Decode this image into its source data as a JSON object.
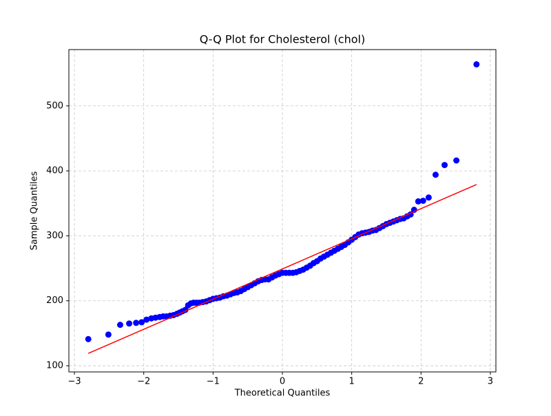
{
  "chart_data": {
    "type": "scatter",
    "title": "Q-Q Plot for Cholesterol (chol)",
    "x_label": "Theoretical Quantiles",
    "y_label": "Sample Quantiles",
    "xlim": [
      -3.08,
      3.08
    ],
    "ylim": [
      90.5,
      586.7
    ],
    "xticks": [
      {
        "value": -3,
        "label": "−3"
      },
      {
        "value": -2,
        "label": "−2"
      },
      {
        "value": -1,
        "label": "−1"
      },
      0,
      1,
      2,
      3
    ],
    "yticks": [
      100,
      200,
      300,
      400,
      500
    ],
    "grid": true,
    "series": [
      {
        "type": "scatter",
        "color": "#0000ff",
        "x": [
          -2.8,
          -2.51,
          -2.34,
          -2.21,
          -2.11,
          -2.03,
          -1.96,
          -1.89,
          -1.83,
          -1.77,
          -1.72,
          -1.67,
          -1.62,
          -1.57,
          -1.52,
          -1.48,
          -1.44,
          -1.4,
          -1.36,
          -1.32,
          -1.28,
          -1.24,
          -1.2,
          -1.15,
          -1.1,
          -1.05,
          -1.0,
          -0.95,
          -0.9,
          -0.85,
          -0.8,
          -0.75,
          -0.7,
          -0.65,
          -0.6,
          -0.55,
          -0.5,
          -0.45,
          -0.4,
          -0.35,
          -0.3,
          -0.25,
          -0.2,
          -0.15,
          -0.1,
          -0.05,
          0.0,
          0.05,
          0.1,
          0.15,
          0.2,
          0.25,
          0.3,
          0.35,
          0.4,
          0.45,
          0.5,
          0.55,
          0.6,
          0.65,
          0.7,
          0.75,
          0.8,
          0.85,
          0.9,
          0.95,
          1.0,
          1.05,
          1.1,
          1.15,
          1.2,
          1.25,
          1.3,
          1.35,
          1.4,
          1.45,
          1.5,
          1.55,
          1.6,
          1.65,
          1.7,
          1.75,
          1.8,
          1.85,
          1.9,
          1.96,
          2.03,
          2.11,
          2.21,
          2.34,
          2.51,
          2.8
        ],
        "values": [
          141,
          148,
          163,
          165,
          166,
          167,
          171,
          173,
          174,
          175,
          176,
          176,
          177,
          178,
          180,
          182,
          184,
          186,
          193,
          196,
          197,
          197,
          197,
          198,
          199,
          201,
          203,
          204,
          205,
          207,
          208,
          210,
          212,
          213,
          215,
          218,
          221,
          224,
          227,
          230,
          232,
          233,
          233,
          236,
          239,
          241,
          243,
          243,
          243,
          243,
          244,
          246,
          248,
          251,
          254,
          258,
          261,
          265,
          268,
          271,
          274,
          277,
          280,
          283,
          286,
          290,
          294,
          298,
          302,
          304,
          305,
          306,
          308,
          309,
          312,
          315,
          318,
          320,
          322,
          324,
          326,
          327,
          330,
          333,
          340,
          353,
          354,
          359,
          394,
          409,
          416,
          564
        ]
      },
      {
        "type": "line",
        "color": "#ff0000",
        "x": [
          -2.8,
          2.8
        ],
        "values": [
          119,
          379
        ]
      }
    ]
  }
}
